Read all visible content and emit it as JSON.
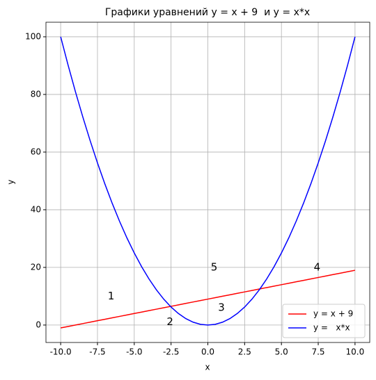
{
  "chart_data": {
    "type": "line",
    "title": "Графики уравнений y = x + 9  и y = x*x",
    "xlabel": "x",
    "ylabel": "y",
    "x": [
      -10,
      -9.5,
      -9,
      -8.5,
      -8,
      -7.5,
      -7,
      -6.5,
      -6,
      -5.5,
      -5,
      -4.5,
      -4,
      -3.5,
      -3,
      -2.5,
      -2,
      -1.5,
      -1,
      -0.5,
      0,
      0.5,
      1,
      1.5,
      2,
      2.5,
      3,
      3.5,
      4,
      4.5,
      5,
      5.5,
      6,
      6.5,
      7,
      7.5,
      8,
      8.5,
      9,
      9.5,
      10
    ],
    "series": [
      {
        "name": "y = x + 9",
        "color": "#ff0000",
        "values": [
          -1,
          -0.5,
          0,
          0.5,
          1,
          1.5,
          2,
          2.5,
          3,
          3.5,
          4,
          4.5,
          5,
          5.5,
          6,
          6.5,
          7,
          7.5,
          8,
          8.5,
          9,
          9.5,
          10,
          10.5,
          11,
          11.5,
          12,
          12.5,
          13,
          13.5,
          14,
          14.5,
          15,
          15.5,
          16,
          16.5,
          17,
          17.5,
          18,
          18.5,
          19
        ]
      },
      {
        "name": "y =   x*x",
        "color": "#0000ff",
        "values": [
          100,
          90.25,
          81,
          72.25,
          64,
          56.25,
          49,
          42.25,
          36,
          30.25,
          25,
          20.25,
          16,
          12.25,
          9,
          6.25,
          4,
          2.25,
          1,
          0.25,
          0,
          0.25,
          1,
          2.25,
          4,
          6.25,
          9,
          12.25,
          16,
          20.25,
          25,
          30.25,
          36,
          42.25,
          49,
          56.25,
          64,
          72.25,
          81,
          90.25,
          100
        ]
      }
    ],
    "annotations": [
      {
        "text": "1",
        "x": -6.8,
        "y": 10
      },
      {
        "text": "2",
        "x": -2.8,
        "y": 1
      },
      {
        "text": "3",
        "x": 0.7,
        "y": 6
      },
      {
        "text": "5",
        "x": 0.2,
        "y": 20
      },
      {
        "text": "4",
        "x": 7.2,
        "y": 20
      }
    ],
    "xlim": [
      -11,
      11
    ],
    "ylim": [
      -6.05,
      105.05
    ],
    "xticks": [
      {
        "value": -10,
        "label": "-10.0"
      },
      {
        "value": -7.5,
        "label": "-7.5"
      },
      {
        "value": -5,
        "label": "-5.0"
      },
      {
        "value": -2.5,
        "label": "-2.5"
      },
      {
        "value": 0,
        "label": "0.0"
      },
      {
        "value": 2.5,
        "label": "2.5"
      },
      {
        "value": 5,
        "label": "5.0"
      },
      {
        "value": 7.5,
        "label": "7.5"
      },
      {
        "value": 10,
        "label": "10.0"
      }
    ],
    "yticks": [
      0,
      20,
      40,
      60,
      80,
      100
    ],
    "grid": true,
    "legend": "lower right"
  }
}
